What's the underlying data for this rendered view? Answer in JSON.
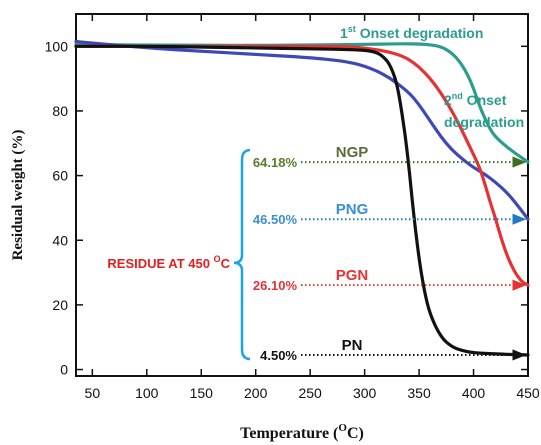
{
  "chart_data": {
    "type": "line",
    "title": "",
    "xlabel": "Temperature (",
    "xlabel_sup": "O",
    "xlabel_end": "C)",
    "ylabel": "Residual weight  (%)",
    "xlim": [
      35,
      450
    ],
    "ylim": [
      -2,
      110
    ],
    "x_ticks": [
      50,
      100,
      150,
      200,
      250,
      300,
      350,
      400,
      450
    ],
    "y_ticks": [
      0,
      20,
      40,
      60,
      80,
      100
    ],
    "grid": false,
    "legend": "none",
    "series": [
      {
        "name": "NGP",
        "color": "#2a9d8f",
        "points": [
          [
            35,
            100.5
          ],
          [
            100,
            100.4
          ],
          [
            200,
            100.3
          ],
          [
            250,
            100.4
          ],
          [
            300,
            100.6
          ],
          [
            330,
            100.8
          ],
          [
            355,
            100.7
          ],
          [
            370,
            100
          ],
          [
            380,
            98
          ],
          [
            388,
            95
          ],
          [
            395,
            91
          ],
          [
            400,
            87
          ],
          [
            405,
            82
          ],
          [
            410,
            78
          ],
          [
            415,
            74.5
          ],
          [
            420,
            72
          ],
          [
            430,
            69
          ],
          [
            440,
            66.5
          ],
          [
            450,
            64.2
          ]
        ]
      },
      {
        "name": "PNG",
        "color": "#3f48b8",
        "points": [
          [
            35,
            101.5
          ],
          [
            50,
            101
          ],
          [
            100,
            99.5
          ],
          [
            150,
            98.5
          ],
          [
            200,
            97.5
          ],
          [
            250,
            96.5
          ],
          [
            280,
            95.5
          ],
          [
            300,
            94
          ],
          [
            320,
            91
          ],
          [
            340,
            86
          ],
          [
            350,
            82
          ],
          [
            360,
            77
          ],
          [
            370,
            72
          ],
          [
            380,
            68
          ],
          [
            390,
            65
          ],
          [
            400,
            62.5
          ],
          [
            410,
            60.5
          ],
          [
            420,
            58
          ],
          [
            430,
            55
          ],
          [
            440,
            51
          ],
          [
            450,
            46.5
          ]
        ]
      },
      {
        "name": "PGN",
        "color": "#e63232",
        "points": [
          [
            35,
            100
          ],
          [
            100,
            100
          ],
          [
            200,
            100
          ],
          [
            250,
            100
          ],
          [
            280,
            100
          ],
          [
            300,
            99.5
          ],
          [
            320,
            98.5
          ],
          [
            335,
            97
          ],
          [
            345,
            95
          ],
          [
            355,
            92
          ],
          [
            365,
            88
          ],
          [
            375,
            83
          ],
          [
            385,
            77
          ],
          [
            395,
            70
          ],
          [
            405,
            63
          ],
          [
            410,
            58
          ],
          [
            415,
            52
          ],
          [
            420,
            47
          ],
          [
            425,
            41
          ],
          [
            430,
            36
          ],
          [
            435,
            32
          ],
          [
            440,
            29
          ],
          [
            445,
            27
          ],
          [
            450,
            26.1
          ]
        ]
      },
      {
        "name": "PN",
        "color": "#111111",
        "points": [
          [
            35,
            100
          ],
          [
            100,
            100
          ],
          [
            150,
            99.8
          ],
          [
            200,
            99.5
          ],
          [
            250,
            99.2
          ],
          [
            290,
            99
          ],
          [
            310,
            98.5
          ],
          [
            320,
            96
          ],
          [
            325,
            93
          ],
          [
            330,
            88
          ],
          [
            335,
            78
          ],
          [
            340,
            65
          ],
          [
            345,
            48
          ],
          [
            350,
            34
          ],
          [
            355,
            24
          ],
          [
            360,
            17
          ],
          [
            370,
            10
          ],
          [
            380,
            7
          ],
          [
            390,
            5.8
          ],
          [
            400,
            5.2
          ],
          [
            420,
            4.8
          ],
          [
            450,
            4.5
          ]
        ]
      }
    ],
    "residues": [
      {
        "value": 64.18,
        "label": "64.18%",
        "series": "NGP",
        "color": "#5a7a2c",
        "arrow_color": "#3f6b22",
        "name_color": "#5a6b3c"
      },
      {
        "value": 46.5,
        "label": "46.50%",
        "series": "PNG",
        "color": "#3a8fd0",
        "arrow_color": "#1f78c8",
        "name_color": "#3a8fd0"
      },
      {
        "value": 26.1,
        "label": "26.10%",
        "series": "PGN",
        "color": "#e63232",
        "arrow_color": "#e63232",
        "name_color": "#e63232"
      },
      {
        "value": 4.5,
        "label": "4.50%",
        "series": "PN",
        "color": "#111111",
        "arrow_color": "#111111",
        "name_color": "#111111"
      }
    ],
    "annotations": {
      "onset1_sup": "st",
      "onset1_pre": "1",
      "onset1_text": " Onset degradation",
      "onset2_pre": "2",
      "onset2_sup": "nd",
      "onset2_text": " Onset",
      "onset2_line2": "degradation",
      "onset_color": "#2a9d8f",
      "residue_label": "RESIDUE AT 450 ",
      "residue_sup": "O",
      "residue_end": "C",
      "residue_color": "#e02020",
      "brace_color": "#1aa5e6"
    }
  }
}
